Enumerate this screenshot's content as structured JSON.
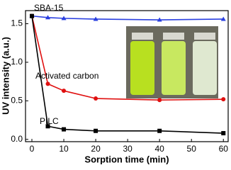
{
  "chart_data": {
    "type": "line",
    "x_label": "Sorption time (min)",
    "y_label": "UV intensity (a.u.)",
    "x": [
      0,
      5,
      10,
      20,
      40,
      60
    ],
    "series": [
      {
        "name": "SBA-15",
        "color": "#2a3fe0",
        "marker": "triangle",
        "values": [
          1.6,
          1.58,
          1.57,
          1.56,
          1.55,
          1.56
        ]
      },
      {
        "name": "Activated carbon",
        "color": "#e01010",
        "marker": "circle",
        "values": [
          1.6,
          0.72,
          0.63,
          0.53,
          0.51,
          0.52
        ]
      },
      {
        "name": "PILC",
        "color": "#000000",
        "marker": "square",
        "values": [
          1.6,
          0.17,
          0.13,
          0.11,
          0.11,
          0.08
        ]
      }
    ],
    "xlim": [
      -2,
      61.5
    ],
    "xticks": [
      0,
      10,
      20,
      30,
      40,
      50,
      60
    ],
    "ylim": [
      -0.03,
      1.67
    ],
    "yticks": [
      {
        "value": 0,
        "label": "0.0"
      },
      0.5,
      {
        "value": 1,
        "label": "1.0"
      },
      1.5
    ]
  }
}
